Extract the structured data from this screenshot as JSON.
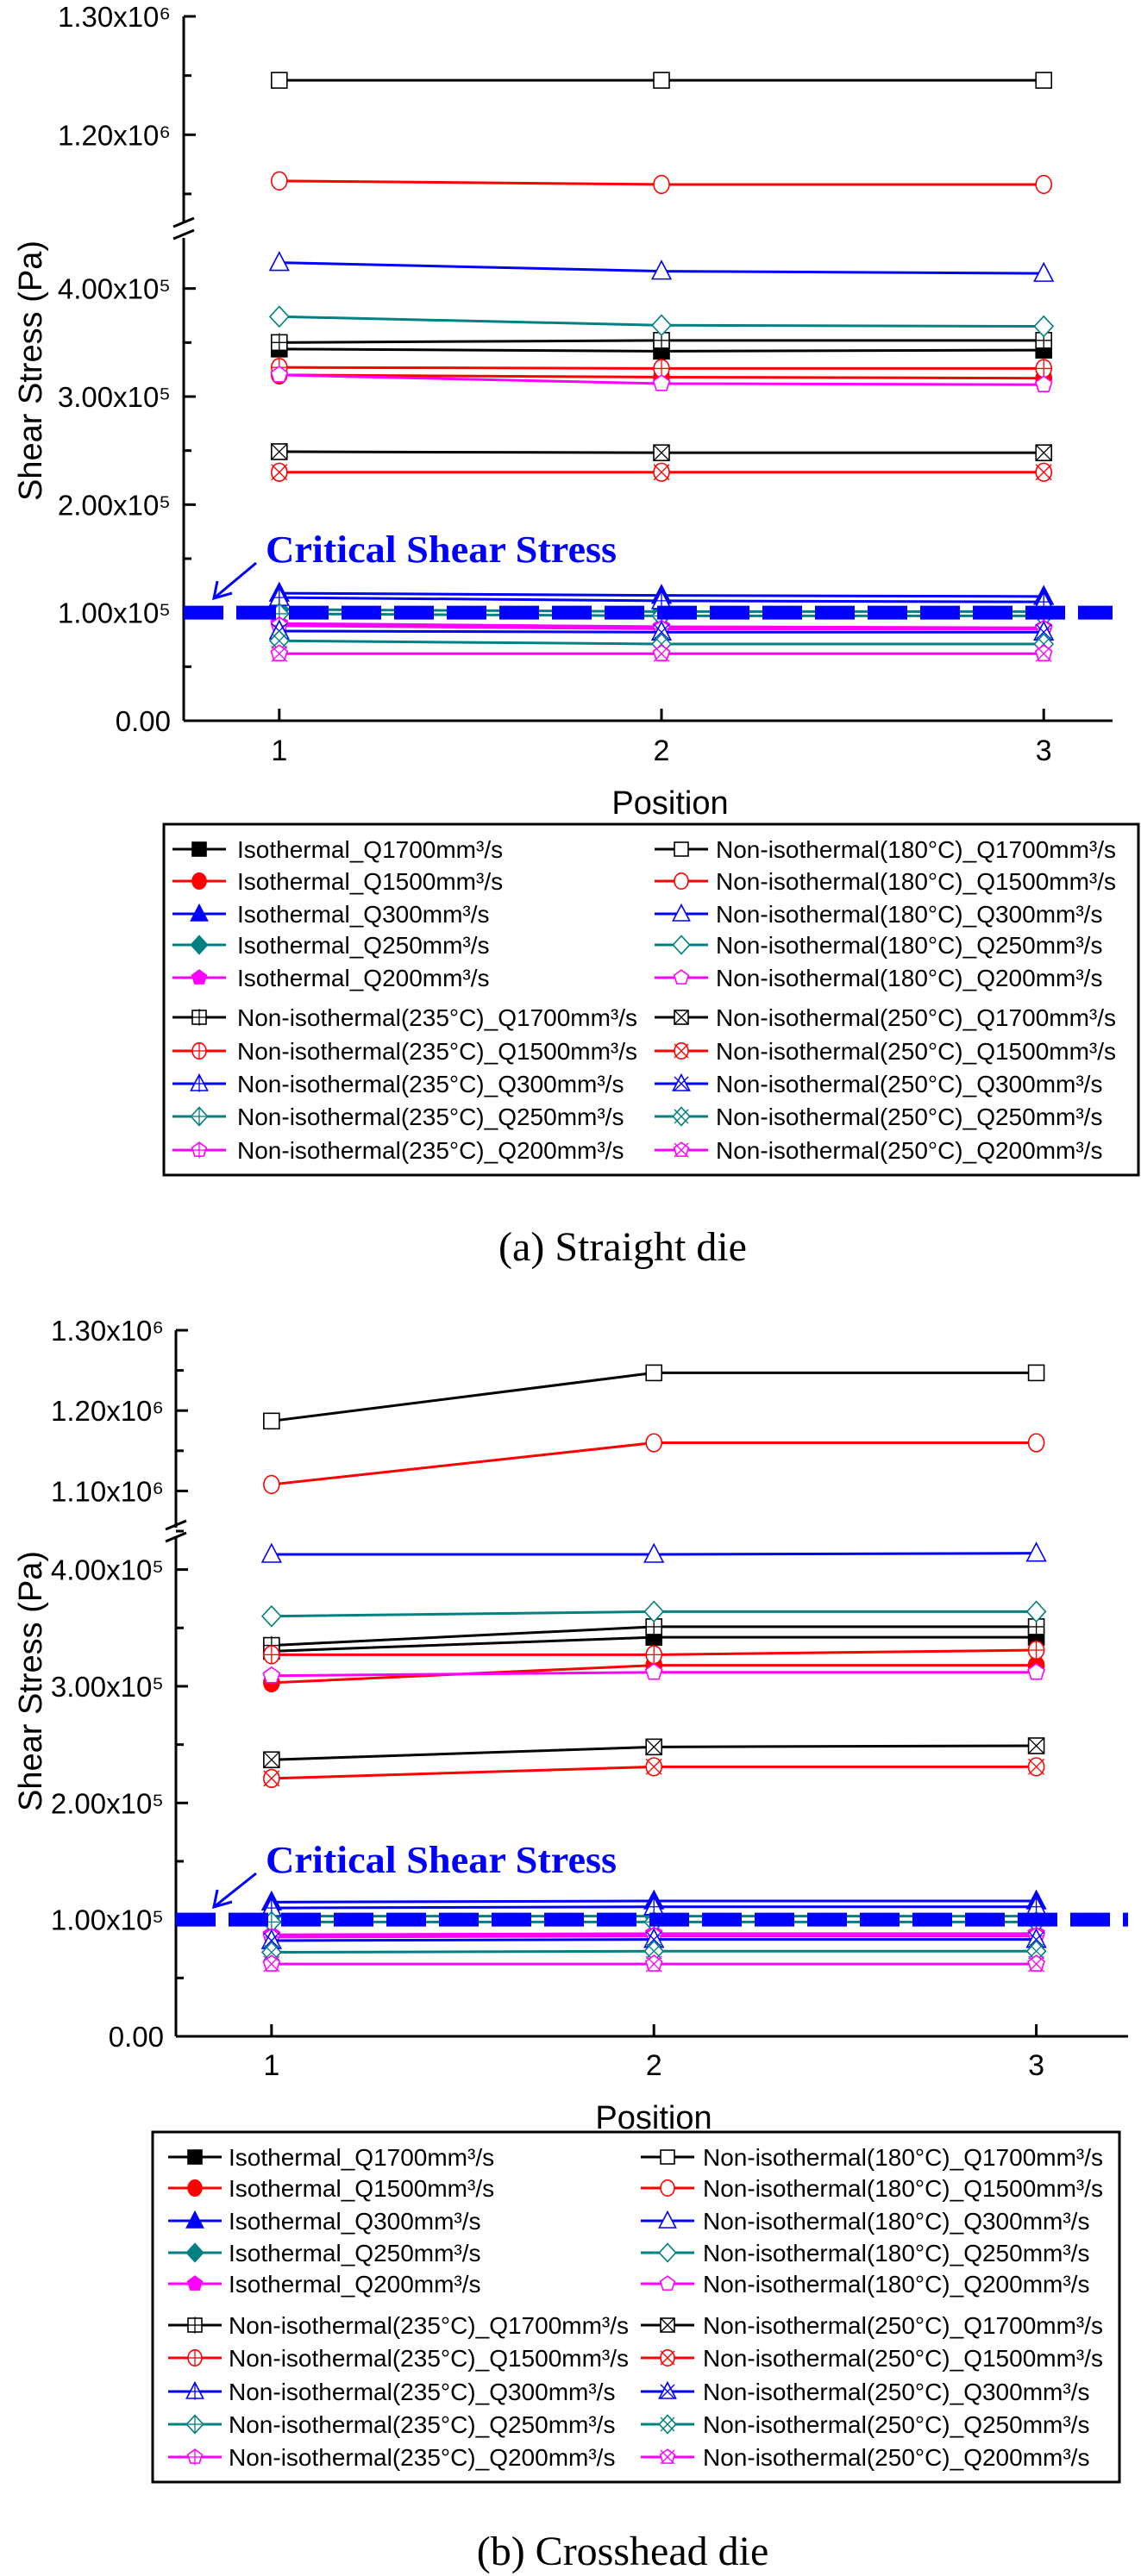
{
  "chart_data": [
    {
      "type": "line",
      "caption": "(a) Straight die",
      "xlabel": "Position",
      "ylabel": "Shear Stress (Pa)",
      "x": [
        1,
        2,
        3
      ],
      "xticks": [
        "1",
        "2",
        "3"
      ],
      "xlim": [
        0.75,
        3.18
      ],
      "y_axis_break": true,
      "ylim_lower": [
        0,
        450000
      ],
      "ylim_upper": [
        1123000,
        1300000
      ],
      "yticks_lower": [
        {
          "v": 400000,
          "label": "4.00x10⁵"
        },
        {
          "v": 300000,
          "label": "3.00x10⁵"
        },
        {
          "v": 200000,
          "label": "2.00x10⁵"
        },
        {
          "v": 100000,
          "label": "1.00x10⁵"
        },
        {
          "v": 0,
          "label": "0.00"
        }
      ],
      "yticks_upper": [
        {
          "v": 1300000,
          "label": "1.30x10⁶"
        },
        {
          "v": 1200000,
          "label": "1.20x10⁶"
        }
      ],
      "grid": false,
      "legend_placement": "below",
      "annotation": {
        "text": "Critical Shear Stress",
        "value": 100000,
        "color": "#0000ff"
      },
      "series": [
        {
          "name": "Isothermal_Q1700mm³/s",
          "color": "#000000",
          "marker": "square-filled",
          "values": [
            344000,
            342000,
            343000
          ]
        },
        {
          "name": "Isothermal_Q1500mm³/s",
          "color": "#ff0000",
          "marker": "circle-filled",
          "values": [
            320000,
            318000,
            317000
          ]
        },
        {
          "name": "Isothermal_Q300mm³/s",
          "color": "#0000ff",
          "marker": "triangle-filled",
          "values": [
            118000,
            116000,
            115000
          ]
        },
        {
          "name": "Isothermal_Q250mm³/s",
          "color": "#008080",
          "marker": "diamond-filled",
          "values": [
            103000,
            101000,
            101000
          ]
        },
        {
          "name": "Isothermal_Q200mm³/s",
          "color": "#ff00ff",
          "marker": "pentagon-filled",
          "values": [
            90000,
            87000,
            86000
          ]
        },
        {
          "name": "Non-isothermal(235°C)_Q1700mm³/s",
          "color": "#000000",
          "marker": "square-plus",
          "values": [
            350000,
            352000,
            352000
          ]
        },
        {
          "name": "Non-isothermal(235°C)_Q1500mm³/s",
          "color": "#ff0000",
          "marker": "circle-plus",
          "values": [
            327000,
            326000,
            326000
          ]
        },
        {
          "name": "Non-isothermal(235°C)_Q300mm³/s",
          "color": "#0000ff",
          "marker": "triangle-plus",
          "values": [
            114000,
            111000,
            110000
          ]
        },
        {
          "name": "Non-isothermal(235°C)_Q250mm³/s",
          "color": "#008080",
          "marker": "diamond-plus",
          "values": [
            99000,
            97000,
            97000
          ]
        },
        {
          "name": "Non-isothermal(235°C)_Q200mm³/s",
          "color": "#ff00ff",
          "marker": "pentagon-plus",
          "values": [
            88000,
            85000,
            85000
          ]
        },
        {
          "name": "Non-isothermal(180°C)_Q1700mm³/s",
          "color": "#000000",
          "marker": "square-open",
          "values": [
            1246000,
            1246000,
            1246000
          ]
        },
        {
          "name": "Non-isothermal(180°C)_Q1500mm³/s",
          "color": "#ff0000",
          "marker": "circle-open",
          "values": [
            1161000,
            1158000,
            1158000
          ]
        },
        {
          "name": "Non-isothermal(180°C)_Q300mm³/s",
          "color": "#0000ff",
          "marker": "triangle-open",
          "values": [
            424000,
            416000,
            414000
          ]
        },
        {
          "name": "Non-isothermal(180°C)_Q250mm³/s",
          "color": "#008080",
          "marker": "diamond-open",
          "values": [
            374000,
            366000,
            365000
          ]
        },
        {
          "name": "Non-isothermal(180°C)_Q200mm³/s",
          "color": "#ff00ff",
          "marker": "pentagon-open",
          "values": [
            320000,
            312000,
            311000
          ]
        },
        {
          "name": "Non-isothermal(250°C)_Q1700mm³/s",
          "color": "#000000",
          "marker": "square-x",
          "values": [
            249000,
            248000,
            248000
          ]
        },
        {
          "name": "Non-isothermal(250°C)_Q1500mm³/s",
          "color": "#ff0000",
          "marker": "circle-x",
          "values": [
            230000,
            230000,
            230000
          ]
        },
        {
          "name": "Non-isothermal(250°C)_Q300mm³/s",
          "color": "#0000ff",
          "marker": "triangle-x",
          "values": [
            83000,
            82000,
            82000
          ]
        },
        {
          "name": "Non-isothermal(250°C)_Q250mm³/s",
          "color": "#008080",
          "marker": "diamond-x",
          "values": [
            74000,
            71000,
            71000
          ]
        },
        {
          "name": "Non-isothermal(250°C)_Q200mm³/s",
          "color": "#ff00ff",
          "marker": "pentagon-x",
          "values": [
            62000,
            62000,
            62000
          ]
        }
      ]
    },
    {
      "type": "line",
      "caption": "(b) Crosshead die",
      "xlabel": "Position",
      "ylabel": "Shear Stress (Pa)",
      "x": [
        1,
        2,
        3
      ],
      "xticks": [
        "1",
        "2",
        "3"
      ],
      "xlim": [
        0.75,
        3.24
      ],
      "y_axis_break": true,
      "ylim_lower": [
        0,
        430000
      ],
      "ylim_upper": [
        1050000,
        1300000
      ],
      "yticks_lower": [
        {
          "v": 400000,
          "label": "4.00x10⁵"
        },
        {
          "v": 300000,
          "label": "3.00x10⁵"
        },
        {
          "v": 200000,
          "label": "2.00x10⁵"
        },
        {
          "v": 100000,
          "label": "1.00x10⁵"
        },
        {
          "v": 0,
          "label": "0.00"
        }
      ],
      "yticks_upper": [
        {
          "v": 1300000,
          "label": "1.30x10⁶"
        },
        {
          "v": 1200000,
          "label": "1.20x10⁶"
        },
        {
          "v": 1100000,
          "label": "1.10x10⁶"
        }
      ],
      "grid": false,
      "legend_placement": "below",
      "annotation": {
        "text": "Critical Shear Stress",
        "value": 100000,
        "color": "#0000ff"
      },
      "series": [
        {
          "name": "Isothermal_Q1700mm³/s",
          "color": "#000000",
          "marker": "square-filled",
          "values": [
            330000,
            342000,
            342000
          ]
        },
        {
          "name": "Isothermal_Q1500mm³/s",
          "color": "#ff0000",
          "marker": "circle-filled",
          "values": [
            303000,
            318000,
            318000
          ]
        },
        {
          "name": "Isothermal_Q300mm³/s",
          "color": "#0000ff",
          "marker": "triangle-filled",
          "values": [
            115000,
            116000,
            116000
          ]
        },
        {
          "name": "Isothermal_Q250mm³/s",
          "color": "#008080",
          "marker": "diamond-filled",
          "values": [
            103000,
            103000,
            103000
          ]
        },
        {
          "name": "Isothermal_Q200mm³/s",
          "color": "#ff00ff",
          "marker": "pentagon-filled",
          "values": [
            87000,
            88000,
            88000
          ]
        },
        {
          "name": "Non-isothermal(235°C)_Q1700mm³/s",
          "color": "#000000",
          "marker": "square-plus",
          "values": [
            335000,
            351000,
            351000
          ]
        },
        {
          "name": "Non-isothermal(235°C)_Q1500mm³/s",
          "color": "#ff0000",
          "marker": "circle-plus",
          "values": [
            327000,
            327000,
            331000
          ]
        },
        {
          "name": "Non-isothermal(235°C)_Q300mm³/s",
          "color": "#0000ff",
          "marker": "triangle-plus",
          "values": [
            110000,
            111000,
            111000
          ]
        },
        {
          "name": "Non-isothermal(235°C)_Q250mm³/s",
          "color": "#008080",
          "marker": "diamond-plus",
          "values": [
            98000,
            98000,
            98000
          ]
        },
        {
          "name": "Non-isothermal(235°C)_Q200mm³/s",
          "color": "#ff00ff",
          "marker": "pentagon-plus",
          "values": [
            85000,
            86000,
            86000
          ]
        },
        {
          "name": "Non-isothermal(180°C)_Q1700mm³/s",
          "color": "#000000",
          "marker": "square-open",
          "values": [
            1187000,
            1247000,
            1247000
          ]
        },
        {
          "name": "Non-isothermal(180°C)_Q1500mm³/s",
          "color": "#ff0000",
          "marker": "circle-open",
          "values": [
            1108000,
            1160000,
            1160000
          ]
        },
        {
          "name": "Non-isothermal(180°C)_Q300mm³/s",
          "color": "#0000ff",
          "marker": "triangle-open",
          "values": [
            413000,
            413000,
            414000
          ]
        },
        {
          "name": "Non-isothermal(180°C)_Q250mm³/s",
          "color": "#008080",
          "marker": "diamond-open",
          "values": [
            360000,
            364000,
            364000
          ]
        },
        {
          "name": "Non-isothermal(180°C)_Q200mm³/s",
          "color": "#ff00ff",
          "marker": "pentagon-open",
          "values": [
            309000,
            312000,
            312000
          ]
        },
        {
          "name": "Non-isothermal(250°C)_Q1700mm³/s",
          "color": "#000000",
          "marker": "square-x",
          "values": [
            237000,
            248000,
            249000
          ]
        },
        {
          "name": "Non-isothermal(250°C)_Q1500mm³/s",
          "color": "#ff0000",
          "marker": "circle-x",
          "values": [
            221000,
            231000,
            231000
          ]
        },
        {
          "name": "Non-isothermal(250°C)_Q300mm³/s",
          "color": "#0000ff",
          "marker": "triangle-x",
          "values": [
            82000,
            83000,
            83000
          ]
        },
        {
          "name": "Non-isothermal(250°C)_Q250mm³/s",
          "color": "#008080",
          "marker": "diamond-x",
          "values": [
            72000,
            73000,
            73000
          ]
        },
        {
          "name": "Non-isothermal(250°C)_Q200mm³/s",
          "color": "#ff00ff",
          "marker": "pentagon-x",
          "values": [
            62000,
            62000,
            62000
          ]
        }
      ]
    }
  ]
}
